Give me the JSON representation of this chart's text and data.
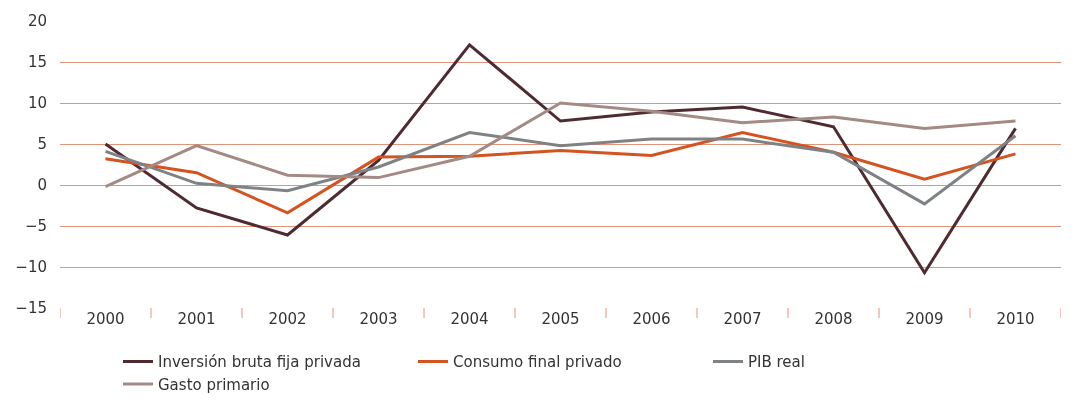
{
  "chart_data": {
    "type": "line",
    "categories": [
      "2000",
      "2001",
      "2002",
      "2003",
      "2004",
      "2005",
      "2006",
      "2007",
      "2008",
      "2009",
      "2010"
    ],
    "series": [
      {
        "name": "Inversión bruta fija privada",
        "color": "#4e2a31",
        "values": [
          5.0,
          -2.8,
          -6.1,
          3.0,
          17.1,
          7.8,
          8.9,
          9.5,
          7.1,
          -10.7,
          6.9
        ]
      },
      {
        "name": "Consumo final privado",
        "color": "#d4531f",
        "values": [
          3.2,
          1.5,
          -3.4,
          3.4,
          3.5,
          4.2,
          3.6,
          6.4,
          4.0,
          0.7,
          3.8
        ]
      },
      {
        "name": "PIB real",
        "color": "#7f8285",
        "values": [
          4.1,
          0.2,
          -0.7,
          2.2,
          6.4,
          4.8,
          5.6,
          5.6,
          4.0,
          -2.3,
          6.0
        ]
      },
      {
        "name": "Gasto primario",
        "color": "#a48a84",
        "values": [
          -0.2,
          4.8,
          1.2,
          0.9,
          3.5,
          10.0,
          9.0,
          7.6,
          8.3,
          6.9,
          7.8
        ]
      }
    ],
    "ylim": [
      -15,
      20
    ],
    "yticks": [
      -15,
      -10,
      -5,
      0,
      5,
      10,
      15,
      20
    ],
    "grid": "y",
    "legend": "bottom",
    "marker": "none",
    "line_style": "solid"
  }
}
